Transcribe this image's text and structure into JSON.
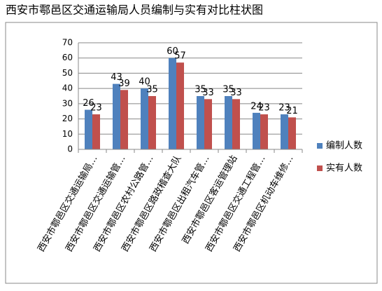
{
  "chart_data": {
    "type": "bar",
    "title": "西安市鄠邑区交通运输局人员编制与实有对比柱状图",
    "categories": [
      "西安市鄠邑区交通运输局…",
      "西安市鄠邑区交通运输管…",
      "西安市鄠邑区农村公路管…",
      "西安市鄠邑区路政稽查大队",
      "西安市鄠邑区出租汽车管…",
      "西安市鄠邑区客运管理站",
      "西安市鄠邑区交通工程管…",
      "西安市鄠邑区机动车维修…"
    ],
    "series": [
      {
        "name": "编制人数",
        "color": "#4f81bd",
        "values": [
          26,
          43,
          40,
          60,
          35,
          35,
          24,
          23
        ]
      },
      {
        "name": "实有人数",
        "color": "#c0504d",
        "values": [
          23,
          39,
          35,
          57,
          33,
          33,
          23,
          21
        ]
      }
    ],
    "ylim": [
      0,
      70
    ],
    "yticks": [
      0,
      10,
      20,
      30,
      40,
      50,
      60,
      70
    ],
    "grid": true,
    "legend": "right"
  }
}
